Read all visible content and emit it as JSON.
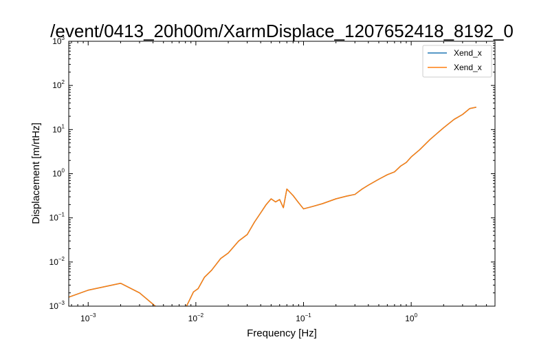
{
  "chart_data": {
    "type": "line",
    "title": "/event/0413_20h00m/XarmDisplace_1207652418_8192_0",
    "xlabel": "Frequency [Hz]",
    "ylabel": "Displacement [m/rtHz]",
    "xscale": "log",
    "yscale": "log",
    "xlim": [
      0.00066,
      6.0
    ],
    "ylim": [
      0.001,
      1000
    ],
    "x_ticks": [
      {
        "base": "10",
        "exp": "−3",
        "value": 0.001
      },
      {
        "base": "10",
        "exp": "−2",
        "value": 0.01
      },
      {
        "base": "10",
        "exp": "−1",
        "value": 0.1
      },
      {
        "base": "10",
        "exp": "0",
        "value": 1
      }
    ],
    "y_ticks": [
      {
        "base": "10",
        "exp": "−3",
        "value": 0.001
      },
      {
        "base": "10",
        "exp": "−2",
        "value": 0.01
      },
      {
        "base": "10",
        "exp": "−1",
        "value": 0.1
      },
      {
        "base": "10",
        "exp": "0",
        "value": 1
      },
      {
        "base": "10",
        "exp": "1",
        "value": 10
      },
      {
        "base": "10",
        "exp": "2",
        "value": 100
      },
      {
        "base": "10",
        "exp": "3",
        "value": 1000
      }
    ],
    "grid": false,
    "legend_position": "top-right",
    "series": [
      {
        "name": "Xend_x",
        "color": "#1f77b4",
        "x": [
          0.00066,
          0.001,
          0.002,
          0.003,
          0.0042,
          0.0055,
          0.0068,
          0.0078,
          0.0085,
          0.0095,
          0.0105,
          0.012,
          0.014,
          0.017,
          0.02,
          0.025,
          0.03,
          0.035,
          0.04,
          0.045,
          0.05,
          0.055,
          0.06,
          0.065,
          0.07,
          0.08,
          0.09,
          0.1,
          0.12,
          0.15,
          0.2,
          0.25,
          0.3,
          0.35,
          0.4,
          0.5,
          0.6,
          0.7,
          0.8,
          0.9,
          1.0,
          1.2,
          1.5,
          2.0,
          2.5,
          3.0,
          3.5,
          4.0
        ],
        "y": [
          0.0016,
          0.0023,
          0.0033,
          0.002,
          0.001,
          0.0007,
          0.0006,
          0.0008,
          0.0012,
          0.0021,
          0.0025,
          0.0045,
          0.0065,
          0.012,
          0.016,
          0.03,
          0.042,
          0.08,
          0.13,
          0.2,
          0.27,
          0.23,
          0.26,
          0.17,
          0.45,
          0.32,
          0.22,
          0.16,
          0.18,
          0.21,
          0.27,
          0.31,
          0.34,
          0.45,
          0.55,
          0.75,
          0.95,
          1.1,
          1.5,
          1.8,
          2.4,
          3.5,
          6.0,
          11.0,
          17.0,
          22.0,
          30.0,
          32.0
        ]
      },
      {
        "name": "Xend_x",
        "color": "#ff7f0e",
        "x": [
          0.00066,
          0.001,
          0.002,
          0.003,
          0.0042,
          0.0055,
          0.0068,
          0.0078,
          0.0085,
          0.0095,
          0.0105,
          0.012,
          0.014,
          0.017,
          0.02,
          0.025,
          0.03,
          0.035,
          0.04,
          0.045,
          0.05,
          0.055,
          0.06,
          0.065,
          0.07,
          0.08,
          0.09,
          0.1,
          0.12,
          0.15,
          0.2,
          0.25,
          0.3,
          0.35,
          0.4,
          0.5,
          0.6,
          0.7,
          0.8,
          0.9,
          1.0,
          1.2,
          1.5,
          2.0,
          2.5,
          3.0,
          3.5,
          4.0
        ],
        "y": [
          0.0016,
          0.0023,
          0.0033,
          0.002,
          0.001,
          0.0007,
          0.0006,
          0.0008,
          0.0012,
          0.0021,
          0.0025,
          0.0045,
          0.0065,
          0.012,
          0.016,
          0.03,
          0.042,
          0.08,
          0.13,
          0.2,
          0.27,
          0.23,
          0.26,
          0.17,
          0.45,
          0.32,
          0.22,
          0.16,
          0.18,
          0.21,
          0.27,
          0.31,
          0.34,
          0.45,
          0.55,
          0.75,
          0.95,
          1.1,
          1.5,
          1.8,
          2.4,
          3.5,
          6.0,
          11.0,
          17.0,
          22.0,
          30.0,
          32.0
        ]
      }
    ]
  }
}
